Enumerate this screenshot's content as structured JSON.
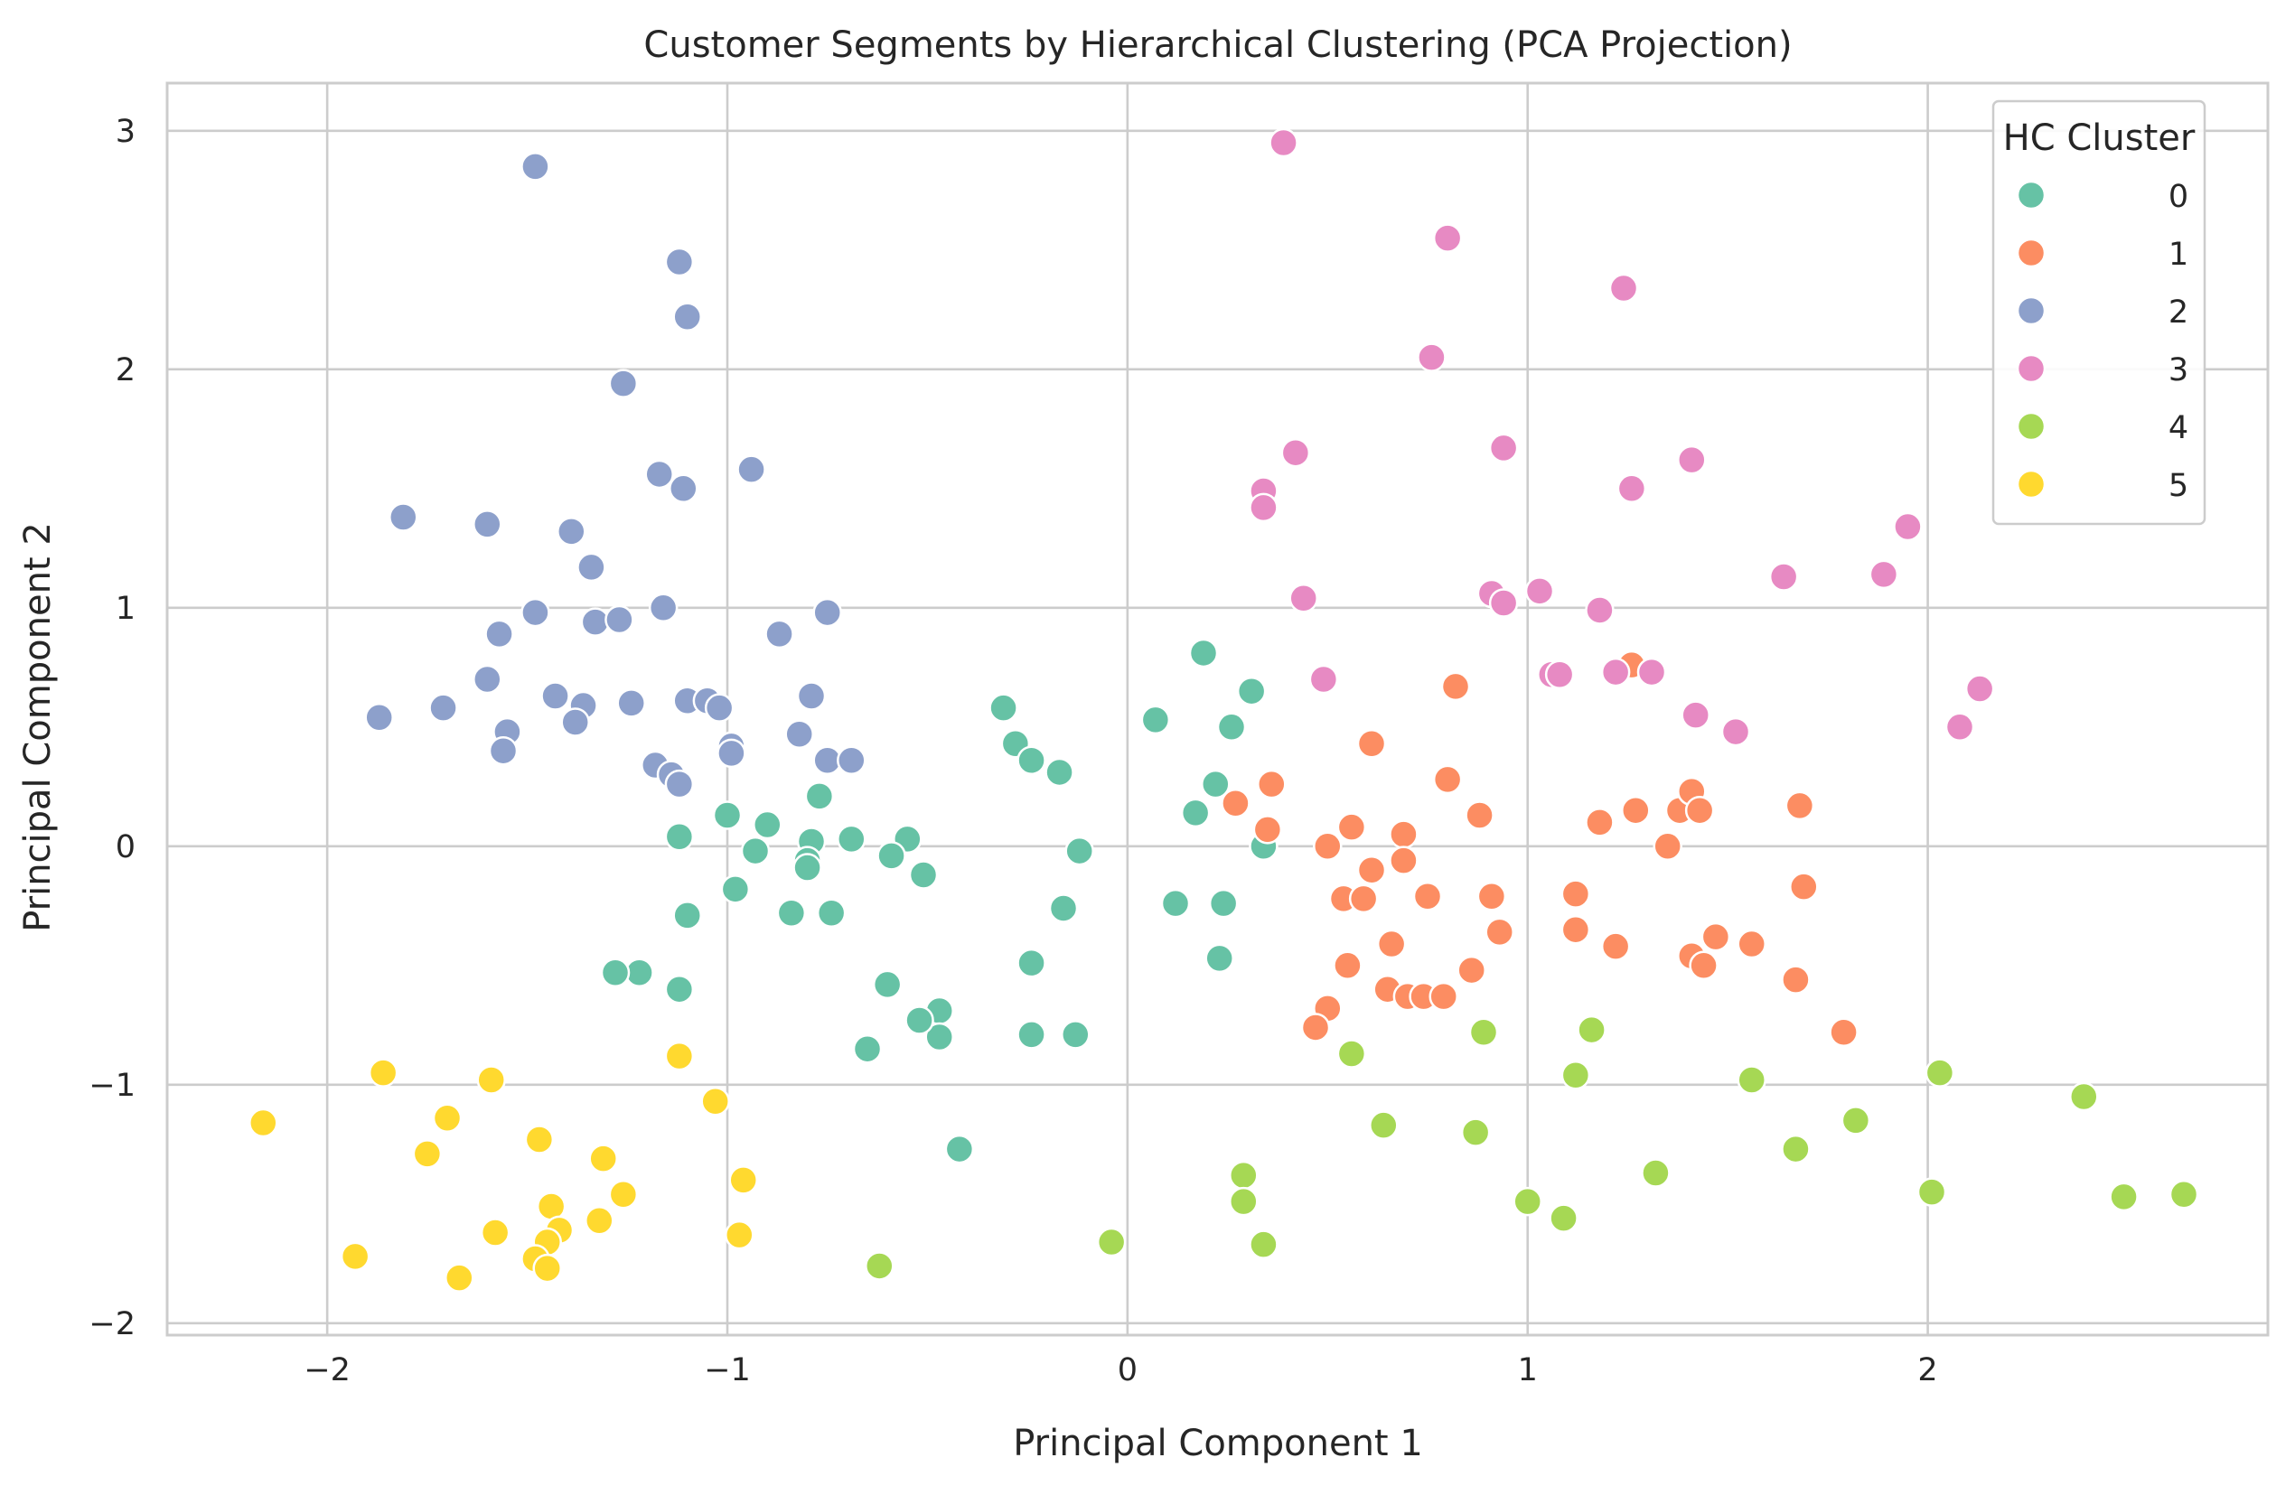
{
  "chart_data": {
    "type": "scatter",
    "title": "Customer Segments by Hierarchical Clustering (PCA Projection)",
    "xlabel": "Principal Component 1",
    "ylabel": "Principal Component 2",
    "xlim": [
      -2.4,
      2.85
    ],
    "ylim": [
      -2.05,
      3.2
    ],
    "xticks": [
      -2,
      -1,
      0,
      1,
      2
    ],
    "xtick_labels": [
      "−2",
      "−1",
      "0",
      "1",
      "2"
    ],
    "yticks": [
      -2,
      -1,
      0,
      1,
      2,
      3
    ],
    "ytick_labels": [
      "−2",
      "−1",
      "0",
      "1",
      "2",
      "3"
    ],
    "grid": true,
    "legend": {
      "title": "HC Cluster",
      "placement": "top-right"
    },
    "series": [
      {
        "name": "0",
        "color": "#66c2a5",
        "points": [
          [
            -0.31,
            0.58
          ],
          [
            -0.28,
            0.43
          ],
          [
            -0.24,
            0.36
          ],
          [
            -0.17,
            0.31
          ],
          [
            -0.12,
            -0.02
          ],
          [
            -0.16,
            -0.26
          ],
          [
            -0.24,
            -0.49
          ],
          [
            -0.24,
            -0.79
          ],
          [
            -0.13,
            -0.79
          ],
          [
            -0.42,
            -1.27
          ],
          [
            -0.47,
            -0.69
          ],
          [
            -0.47,
            -0.8
          ],
          [
            -0.52,
            -0.73
          ],
          [
            -0.6,
            -0.58
          ],
          [
            -0.65,
            -0.85
          ],
          [
            -0.51,
            -0.12
          ],
          [
            -0.55,
            0.03
          ],
          [
            -0.59,
            -0.04
          ],
          [
            -0.69,
            0.03
          ],
          [
            -0.74,
            -0.28
          ],
          [
            -0.77,
            0.21
          ],
          [
            -0.79,
            0.02
          ],
          [
            -0.8,
            -0.06
          ],
          [
            -0.8,
            -0.09
          ],
          [
            -0.84,
            -0.28
          ],
          [
            -0.9,
            0.09
          ],
          [
            -0.93,
            -0.02
          ],
          [
            -0.98,
            -0.18
          ],
          [
            -1.0,
            0.13
          ],
          [
            -1.1,
            -0.29
          ],
          [
            -1.12,
            0.04
          ],
          [
            -1.12,
            -0.6
          ],
          [
            -1.22,
            -0.53
          ],
          [
            -1.28,
            -0.53
          ],
          [
            0.07,
            0.53
          ],
          [
            0.19,
            0.81
          ],
          [
            0.22,
            0.26
          ],
          [
            0.17,
            0.14
          ],
          [
            0.12,
            -0.24
          ],
          [
            0.24,
            -0.24
          ],
          [
            0.23,
            -0.47
          ],
          [
            0.26,
            0.5
          ],
          [
            0.31,
            0.65
          ],
          [
            0.34,
            0.0
          ]
        ]
      },
      {
        "name": "1",
        "color": "#fc8d62",
        "points": [
          [
            0.27,
            0.18
          ],
          [
            0.36,
            0.26
          ],
          [
            0.35,
            0.07
          ],
          [
            0.5,
            0.0
          ],
          [
            0.56,
            0.08
          ],
          [
            0.54,
            -0.22
          ],
          [
            0.59,
            -0.22
          ],
          [
            0.61,
            0.43
          ],
          [
            0.61,
            -0.1
          ],
          [
            0.69,
            0.05
          ],
          [
            0.69,
            -0.06
          ],
          [
            0.66,
            -0.41
          ],
          [
            0.55,
            -0.5
          ],
          [
            0.65,
            -0.6
          ],
          [
            0.7,
            -0.63
          ],
          [
            0.74,
            -0.63
          ],
          [
            0.79,
            -0.63
          ],
          [
            0.75,
            -0.21
          ],
          [
            0.8,
            0.28
          ],
          [
            0.82,
            0.67
          ],
          [
            0.88,
            0.13
          ],
          [
            0.86,
            -0.52
          ],
          [
            0.91,
            -0.21
          ],
          [
            0.93,
            -0.36
          ],
          [
            0.5,
            -0.68
          ],
          [
            0.47,
            -0.76
          ],
          [
            1.12,
            -0.2
          ],
          [
            1.12,
            -0.35
          ],
          [
            1.18,
            0.1
          ],
          [
            1.22,
            -0.42
          ],
          [
            1.26,
            0.76
          ],
          [
            1.27,
            0.15
          ],
          [
            1.35,
            0.0
          ],
          [
            1.38,
            0.15
          ],
          [
            1.41,
            0.23
          ],
          [
            1.43,
            0.15
          ],
          [
            1.41,
            -0.46
          ],
          [
            1.44,
            -0.5
          ],
          [
            1.47,
            -0.38
          ],
          [
            1.56,
            -0.41
          ],
          [
            1.68,
            0.17
          ],
          [
            1.69,
            -0.17
          ],
          [
            1.67,
            -0.56
          ],
          [
            1.79,
            -0.78
          ]
        ]
      },
      {
        "name": "2",
        "color": "#8da0cb",
        "points": [
          [
            -1.48,
            2.85
          ],
          [
            -1.12,
            2.45
          ],
          [
            -1.1,
            2.22
          ],
          [
            -1.26,
            1.94
          ],
          [
            -0.94,
            1.58
          ],
          [
            -1.17,
            1.56
          ],
          [
            -1.11,
            1.5
          ],
          [
            -1.81,
            1.38
          ],
          [
            -1.6,
            1.35
          ],
          [
            -1.39,
            1.32
          ],
          [
            -1.34,
            1.17
          ],
          [
            -1.48,
            0.98
          ],
          [
            -1.16,
            1.0
          ],
          [
            -1.33,
            0.94
          ],
          [
            -1.27,
            0.95
          ],
          [
            -0.75,
            0.98
          ],
          [
            -0.87,
            0.89
          ],
          [
            -1.57,
            0.89
          ],
          [
            -1.6,
            0.7
          ],
          [
            -1.71,
            0.58
          ],
          [
            -1.87,
            0.54
          ],
          [
            -1.43,
            0.63
          ],
          [
            -1.36,
            0.59
          ],
          [
            -1.38,
            0.52
          ],
          [
            -1.24,
            0.6
          ],
          [
            -1.1,
            0.61
          ],
          [
            -1.05,
            0.61
          ],
          [
            -1.02,
            0.58
          ],
          [
            -0.99,
            0.42
          ],
          [
            -0.99,
            0.39
          ],
          [
            -1.55,
            0.48
          ],
          [
            -1.56,
            0.4
          ],
          [
            -1.18,
            0.34
          ],
          [
            -1.14,
            0.3
          ],
          [
            -1.12,
            0.26
          ],
          [
            -0.79,
            0.63
          ],
          [
            -0.82,
            0.47
          ],
          [
            -0.75,
            0.36
          ],
          [
            -0.69,
            0.36
          ]
        ]
      },
      {
        "name": "3",
        "color": "#e78ac3",
        "points": [
          [
            0.39,
            2.95
          ],
          [
            0.8,
            2.55
          ],
          [
            1.24,
            2.34
          ],
          [
            0.76,
            2.05
          ],
          [
            0.42,
            1.65
          ],
          [
            0.94,
            1.67
          ],
          [
            0.34,
            1.49
          ],
          [
            0.34,
            1.42
          ],
          [
            1.41,
            1.62
          ],
          [
            1.26,
            1.5
          ],
          [
            1.95,
            1.34
          ],
          [
            1.64,
            1.13
          ],
          [
            1.89,
            1.14
          ],
          [
            0.44,
            1.04
          ],
          [
            0.91,
            1.06
          ],
          [
            0.94,
            1.02
          ],
          [
            1.03,
            1.07
          ],
          [
            1.18,
            0.99
          ],
          [
            1.06,
            0.72
          ],
          [
            1.08,
            0.72
          ],
          [
            1.22,
            0.73
          ],
          [
            1.31,
            0.73
          ],
          [
            0.49,
            0.7
          ],
          [
            1.42,
            0.55
          ],
          [
            1.52,
            0.48
          ],
          [
            2.13,
            0.66
          ],
          [
            2.08,
            0.5
          ]
        ]
      },
      {
        "name": "4",
        "color": "#a6d854",
        "points": [
          [
            0.56,
            -0.87
          ],
          [
            0.89,
            -0.78
          ],
          [
            1.16,
            -0.77
          ],
          [
            1.12,
            -0.96
          ],
          [
            0.64,
            -1.17
          ],
          [
            0.87,
            -1.2
          ],
          [
            0.29,
            -1.38
          ],
          [
            0.29,
            -1.49
          ],
          [
            0.34,
            -1.67
          ],
          [
            -0.04,
            -1.66
          ],
          [
            -0.62,
            -1.76
          ],
          [
            1.0,
            -1.49
          ],
          [
            1.09,
            -1.56
          ],
          [
            1.32,
            -1.37
          ],
          [
            1.56,
            -0.98
          ],
          [
            1.67,
            -1.27
          ],
          [
            1.82,
            -1.15
          ],
          [
            2.03,
            -0.95
          ],
          [
            2.01,
            -1.45
          ],
          [
            2.39,
            -1.05
          ],
          [
            2.49,
            -1.47
          ],
          [
            2.64,
            -1.46
          ]
        ]
      },
      {
        "name": "5",
        "color": "#ffd92f",
        "points": [
          [
            -2.16,
            -1.16
          ],
          [
            -1.86,
            -0.95
          ],
          [
            -1.7,
            -1.14
          ],
          [
            -1.75,
            -1.29
          ],
          [
            -1.59,
            -0.98
          ],
          [
            -1.47,
            -1.23
          ],
          [
            -1.31,
            -1.31
          ],
          [
            -1.26,
            -1.46
          ],
          [
            -1.58,
            -1.62
          ],
          [
            -1.44,
            -1.51
          ],
          [
            -1.42,
            -1.61
          ],
          [
            -1.45,
            -1.66
          ],
          [
            -1.48,
            -1.73
          ],
          [
            -1.45,
            -1.77
          ],
          [
            -1.32,
            -1.57
          ],
          [
            -1.67,
            -1.81
          ],
          [
            -1.93,
            -1.72
          ],
          [
            -1.12,
            -0.88
          ],
          [
            -1.03,
            -1.07
          ],
          [
            -0.96,
            -1.4
          ],
          [
            -0.97,
            -1.63
          ]
        ]
      }
    ]
  }
}
